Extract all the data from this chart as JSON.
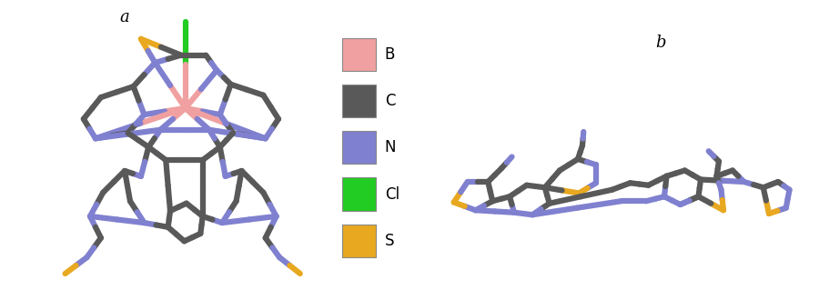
{
  "title_a": "a",
  "title_b": "b",
  "title_fontsize": 13,
  "bg_color": "#ffffff",
  "atom_colors": {
    "B": "#f0a0a0",
    "C": "#595959",
    "N": "#8080d0",
    "Cl": "#22cc22",
    "S": "#e8a820"
  },
  "legend_items": [
    {
      "label": "B",
      "color": "#f0a0a0"
    },
    {
      "label": "C",
      "color": "#595959"
    },
    {
      "label": "N",
      "color": "#8080d0"
    },
    {
      "label": "Cl",
      "color": "#22cc22"
    },
    {
      "label": "S",
      "color": "#e8a820"
    }
  ],
  "lw": 4.5
}
